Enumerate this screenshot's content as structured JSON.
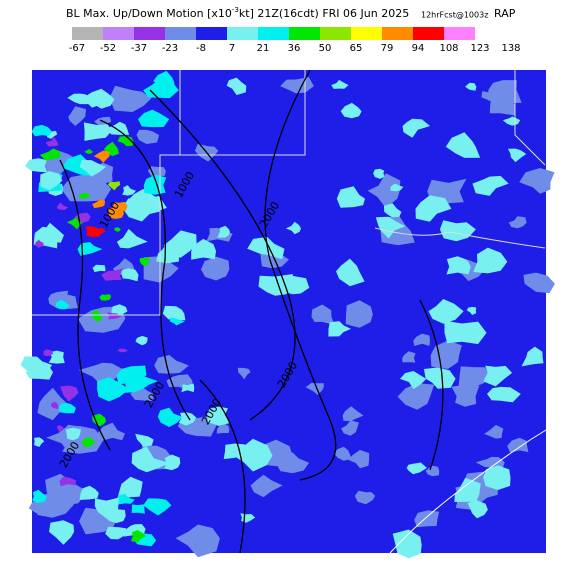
{
  "header": {
    "title_main": "BL Max. Up/Down Motion [x10",
    "title_exp": "-3",
    "title_rest": "kt] 21Z(16cdt) FRI 06 Jun 2025",
    "forecast": "12hrFcst@1003z",
    "model": "RAP"
  },
  "colorbar": {
    "colors": [
      "#b4b4b4",
      "#c080f8",
      "#9632e6",
      "#6e8ce8",
      "#1e1ee8",
      "#78f0f0",
      "#00f0f0",
      "#00e600",
      "#8ce600",
      "#ffff00",
      "#ff8c00",
      "#ff0000",
      "#ff80ff"
    ],
    "labels": [
      "-67",
      "-52",
      "-37",
      "-23",
      "-8",
      "7",
      "21",
      "36",
      "50",
      "65",
      "79",
      "94",
      "108",
      "123",
      "138"
    ]
  },
  "map": {
    "background": "#1e1ee8",
    "contour_labels": [
      "1000",
      "1000",
      "2000",
      "2000",
      "2000",
      "2000",
      "2000"
    ]
  }
}
